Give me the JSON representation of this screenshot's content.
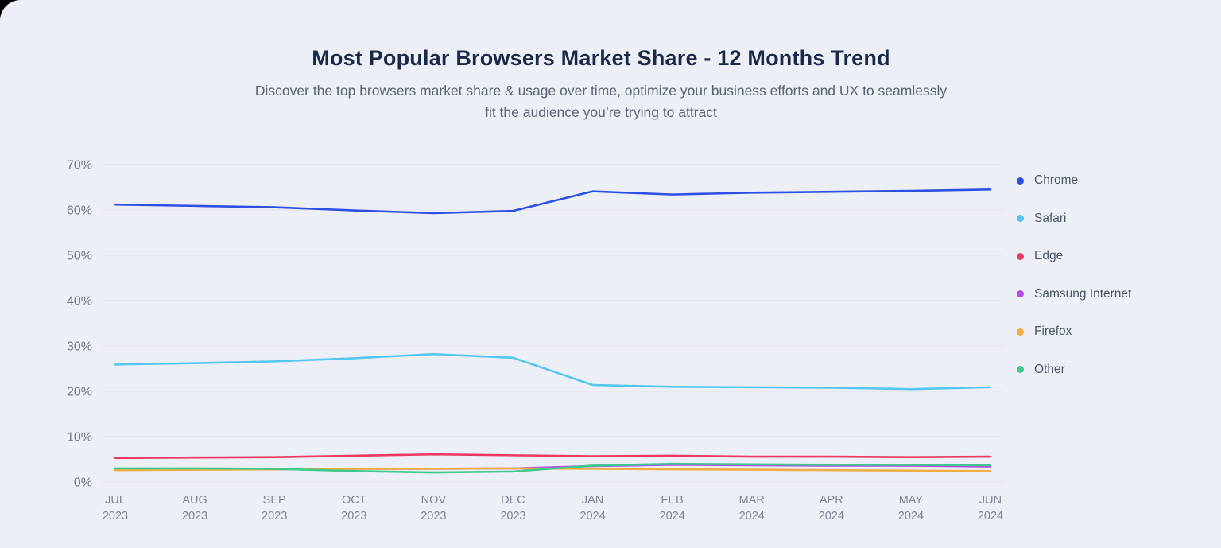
{
  "page": {
    "title": "Most Popular Browsers Market Share - 12 Months Trend",
    "subtitle": "Discover the top browsers market share & usage over time, optimize your business efforts and UX to seamlessly fit the audience you’re trying to attract"
  },
  "colors": {
    "background": "#edeff6",
    "corner_backdrop": "#000000",
    "gridline": "#e4e3e7",
    "axis_tick_text": "#6f7787",
    "month_text": "#7d8393",
    "title_text": "#1c2848",
    "subtitle_text": "#5b6472",
    "legend_text": "#4b5563"
  },
  "chart_data": {
    "type": "line",
    "title": "Most Popular Browsers Market Share - 12 Months Trend",
    "x_categories": [
      {
        "label": "JUL",
        "sub": "2023"
      },
      {
        "label": "AUG",
        "sub": "2023"
      },
      {
        "label": "SEP",
        "sub": "2023"
      },
      {
        "label": "OCT",
        "sub": "2023"
      },
      {
        "label": "NOV",
        "sub": "2023"
      },
      {
        "label": "DEC",
        "sub": "2023"
      },
      {
        "label": "JAN",
        "sub": "2024"
      },
      {
        "label": "FEB",
        "sub": "2024"
      },
      {
        "label": "MAR",
        "sub": "2024"
      },
      {
        "label": "APR",
        "sub": "2024"
      },
      {
        "label": "MAY",
        "sub": "2024"
      },
      {
        "label": "JUN",
        "sub": "2024"
      }
    ],
    "y_ticks": [
      0,
      10,
      20,
      30,
      40,
      50,
      60,
      70
    ],
    "y_tick_suffix": "%",
    "ylim": [
      0,
      70
    ],
    "grid": "horizontal",
    "legend_position": "right",
    "series": [
      {
        "name": "Chrome",
        "color": "#2e4fe4",
        "values": [
          61.2,
          60.9,
          60.6,
          59.9,
          59.3,
          59.8,
          64.1,
          63.4,
          63.8,
          64.0,
          64.2,
          64.5
        ]
      },
      {
        "name": "Safari",
        "color": "#54c6ef",
        "values": [
          25.9,
          26.2,
          26.6,
          27.3,
          28.2,
          27.4,
          21.4,
          21.0,
          20.9,
          20.8,
          20.5,
          20.9
        ]
      },
      {
        "name": "Edge",
        "color": "#ea3a62",
        "values": [
          5.3,
          5.4,
          5.5,
          5.8,
          6.1,
          5.9,
          5.7,
          5.8,
          5.6,
          5.6,
          5.5,
          5.6
        ]
      },
      {
        "name": "Samsung Internet",
        "color": "#b54ce8",
        "values": [
          2.8,
          2.8,
          2.8,
          2.9,
          2.9,
          3.0,
          3.5,
          3.8,
          3.7,
          3.6,
          3.6,
          3.4
        ]
      },
      {
        "name": "Firefox",
        "color": "#f0ad42",
        "values": [
          2.6,
          2.7,
          2.8,
          2.9,
          2.9,
          3.0,
          2.9,
          2.8,
          2.7,
          2.6,
          2.5,
          2.4
        ]
      },
      {
        "name": "Other",
        "color": "#3fc98c",
        "values": [
          3.0,
          3.0,
          2.9,
          2.4,
          2.1,
          2.3,
          3.6,
          4.0,
          3.9,
          3.8,
          3.8,
          3.7
        ]
      }
    ]
  }
}
